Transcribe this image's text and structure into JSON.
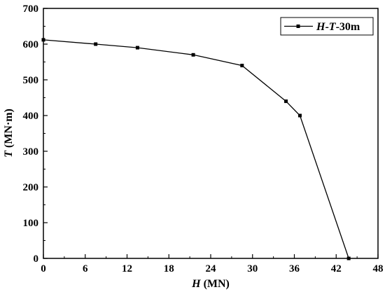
{
  "chart_data": {
    "type": "line",
    "x_axis": {
      "label_var": "H",
      "label_unit": " (MN)",
      "min": 0,
      "max": 48,
      "ticks": [
        0,
        6,
        12,
        18,
        24,
        30,
        36,
        42,
        48
      ],
      "tick_labels": [
        "0",
        "6",
        "12",
        "18",
        "24",
        "30",
        "36",
        "42",
        "48"
      ]
    },
    "y_axis": {
      "label_var": "T",
      "label_unit": " (MN·m)",
      "min": 0,
      "max": 700,
      "ticks": [
        0,
        100,
        200,
        300,
        400,
        500,
        600,
        700
      ],
      "tick_labels": [
        "0",
        "100",
        "200",
        "300",
        "400",
        "500",
        "600",
        "700"
      ]
    },
    "series": [
      {
        "name_parts": [
          "H",
          "-",
          "T",
          "-30m"
        ],
        "color": "#000000",
        "marker": "square",
        "points": [
          {
            "x": 0,
            "y": 612
          },
          {
            "x": 7.5,
            "y": 600
          },
          {
            "x": 13.5,
            "y": 590
          },
          {
            "x": 21.5,
            "y": 570
          },
          {
            "x": 28.5,
            "y": 540
          },
          {
            "x": 34.8,
            "y": 440
          },
          {
            "x": 36.8,
            "y": 400
          },
          {
            "x": 43.8,
            "y": 0
          }
        ]
      }
    ],
    "legend_position": "top-right",
    "grid": false
  }
}
